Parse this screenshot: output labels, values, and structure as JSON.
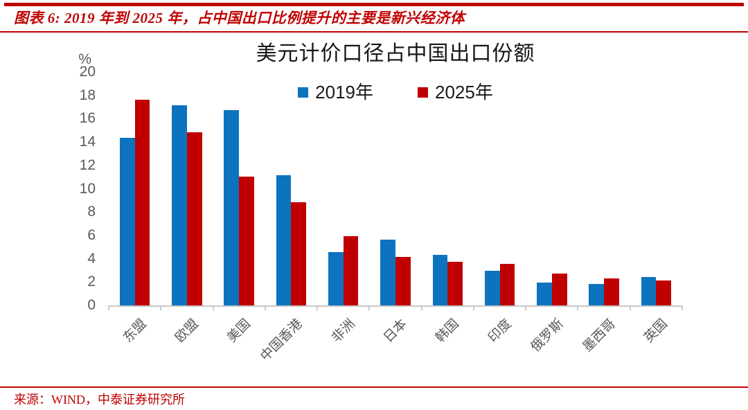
{
  "header": {
    "caption": "图表 6: 2019 年到 2025 年，占中国出口比例提升的主要是新兴经济体"
  },
  "chart_data": {
    "type": "bar",
    "title": "美元计价口径占中国出口份额",
    "unit_label": "%",
    "categories": [
      "东盟",
      "欧盟",
      "美国",
      "中国香港",
      "非洲",
      "日本",
      "韩国",
      "印度",
      "俄罗斯",
      "墨西哥",
      "英国"
    ],
    "series": [
      {
        "name": "2019年",
        "color": "#0d73be",
        "values": [
          14.4,
          17.2,
          16.8,
          11.2,
          4.6,
          5.7,
          4.4,
          3.0,
          2.0,
          1.9,
          2.5
        ]
      },
      {
        "name": "2025年",
        "color": "#c00000",
        "values": [
          17.7,
          14.9,
          11.1,
          8.9,
          6.0,
          4.2,
          3.8,
          3.6,
          2.8,
          2.4,
          2.2
        ]
      }
    ],
    "ylim": [
      0,
      20
    ],
    "ytick_step": 2,
    "grid": false,
    "legend_position": "top-center",
    "xlabel": "",
    "ylabel": "%"
  },
  "footer": {
    "source": "来源：WIND，中泰证券研究所"
  },
  "colors": {
    "accent_red": "#c00000",
    "series_2019_blue": "#0d73be",
    "series_2025_red": "#c00000",
    "axis_gray": "#c8c8c8",
    "tick_label_gray": "#595959"
  }
}
